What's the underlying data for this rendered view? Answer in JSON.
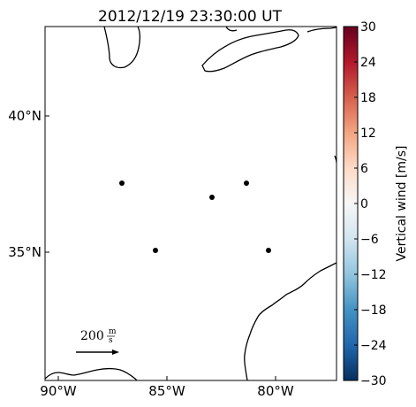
{
  "title": "2012/12/19 23:30:00 UT",
  "map": {
    "lat_ticks": [
      "40°N",
      "35°N"
    ],
    "lon_ticks": [
      "90°W",
      "85°W",
      "80°W"
    ],
    "reference_arrow": {
      "value": "200",
      "unit_num": "m",
      "unit_den": "s"
    }
  },
  "stations": [
    {
      "lon_label": "87.0°W",
      "lat_label": "37.5°N"
    },
    {
      "lon_label": "82.8°W",
      "lat_label": "37.0°N"
    },
    {
      "lon_label": "81.3°W",
      "lat_label": "37.5°N"
    },
    {
      "lon_label": "85.5°W",
      "lat_label": "35.0°N"
    },
    {
      "lon_label": "80.3°W",
      "lat_label": "35.0°N"
    }
  ],
  "colorbar": {
    "label": "Vertical wind [m/s]",
    "ticks": [
      "30",
      "24",
      "18",
      "12",
      "6",
      "0",
      "−6",
      "−12",
      "−18",
      "−24",
      "−30"
    ],
    "colors": {
      "max": "#67001f",
      "mid": "#f7f7f7",
      "min": "#053061"
    }
  },
  "colors": {
    "coastline": "#000000",
    "station": "#000000",
    "background": "#ffffff"
  }
}
